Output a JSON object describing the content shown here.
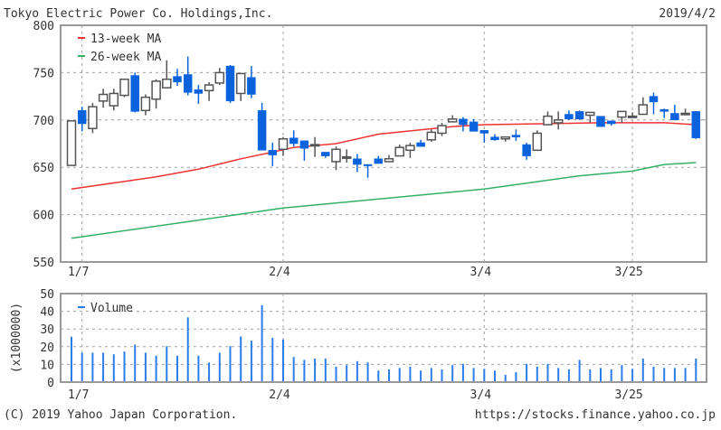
{
  "header": {
    "title": "Tokyo Electric Power Co. Holdings,Inc.",
    "date": "2019/4/2"
  },
  "footer": {
    "copyright": "(C) 2019 Yahoo Japan Corporation.",
    "url": "https://stocks.finance.yahoo.co.jp"
  },
  "colors": {
    "down": "#0a63dc",
    "up_outline": "#555555",
    "ma13": "#ee3333",
    "ma26": "#33b066",
    "volume": "#2b7de9"
  },
  "chart_data": [
    {
      "type": "candlestick",
      "title": "Tokyo Electric Power Co. Holdings,Inc.",
      "ylim": [
        550,
        800
      ],
      "yticks": [
        800,
        750,
        700,
        650,
        600,
        550
      ],
      "xticks": [
        {
          "index": 1,
          "label": "1/7"
        },
        {
          "index": 20,
          "label": "2/4"
        },
        {
          "index": 39,
          "label": "3/4"
        },
        {
          "index": 53,
          "label": "3/25"
        }
      ],
      "legend": [
        "13-week MA",
        "26-week MA"
      ],
      "legend_position": "top-left",
      "ohlc": [
        [
          652,
          699,
          652,
          699
        ],
        [
          710,
          714,
          688,
          696
        ],
        [
          691,
          718,
          686,
          714
        ],
        [
          720,
          733,
          713,
          727
        ],
        [
          715,
          733,
          710,
          728
        ],
        [
          726,
          743,
          724,
          743
        ],
        [
          747,
          750,
          708,
          709
        ],
        [
          710,
          727,
          705,
          724
        ],
        [
          722,
          743,
          712,
          741
        ],
        [
          734,
          763,
          734,
          743
        ],
        [
          746,
          754,
          736,
          740
        ],
        [
          748,
          767,
          726,
          729
        ],
        [
          732,
          737,
          717,
          728
        ],
        [
          731,
          740,
          720,
          737
        ],
        [
          739,
          755,
          737,
          750
        ],
        [
          757,
          758,
          718,
          720
        ],
        [
          728,
          749,
          720,
          749
        ],
        [
          745,
          757,
          723,
          727
        ],
        [
          710,
          718,
          668,
          668
        ],
        [
          668,
          676,
          651,
          663
        ],
        [
          669,
          682,
          662,
          680
        ],
        [
          681,
          689,
          672,
          675
        ],
        [
          678,
          678,
          657,
          670
        ],
        [
          674,
          682,
          661,
          674
        ],
        [
          666,
          666,
          660,
          662
        ],
        [
          656,
          672,
          647,
          669
        ],
        [
          661,
          669,
          655,
          661
        ],
        [
          659,
          664,
          645,
          653
        ],
        [
          653,
          653,
          639,
          652
        ],
        [
          659,
          662,
          654,
          654
        ],
        [
          656,
          663,
          656,
          659
        ],
        [
          662,
          674,
          662,
          671
        ],
        [
          668,
          676,
          660,
          673
        ],
        [
          676,
          679,
          672,
          672
        ],
        [
          679,
          690,
          677,
          687
        ],
        [
          686,
          697,
          683,
          694
        ],
        [
          698,
          705,
          698,
          701
        ],
        [
          701,
          703,
          688,
          695
        ],
        [
          698,
          701,
          688,
          688
        ],
        [
          689,
          689,
          676,
          686
        ],
        [
          682,
          685,
          678,
          679
        ],
        [
          680,
          682,
          677,
          682
        ],
        [
          684,
          690,
          678,
          682
        ],
        [
          674,
          676,
          658,
          662
        ],
        [
          668,
          689,
          668,
          686
        ],
        [
          695,
          709,
          695,
          704
        ],
        [
          697,
          709,
          690,
          700
        ],
        [
          706,
          710,
          700,
          701
        ],
        [
          709,
          710,
          700,
          701
        ],
        [
          705,
          708,
          697,
          708
        ],
        [
          704,
          704,
          693,
          693
        ],
        [
          699,
          699,
          694,
          696
        ],
        [
          703,
          709,
          697,
          709
        ],
        [
          704,
          708,
          703,
          704
        ],
        [
          706,
          724,
          706,
          716
        ],
        [
          725,
          729,
          706,
          719
        ],
        [
          711,
          712,
          702,
          709
        ],
        [
          707,
          716,
          700,
          700
        ],
        [
          707,
          712,
          706,
          707
        ],
        [
          709,
          709,
          680,
          681
        ]
      ],
      "ma13": [
        [
          0,
          627
        ],
        [
          8,
          640
        ],
        [
          12,
          648
        ],
        [
          16,
          659
        ],
        [
          19,
          666
        ],
        [
          21,
          671
        ],
        [
          25,
          675
        ],
        [
          29,
          685
        ],
        [
          36,
          693
        ],
        [
          39,
          695
        ],
        [
          50,
          697
        ],
        [
          56,
          697
        ],
        [
          59,
          695
        ]
      ],
      "ma26": [
        [
          0,
          575
        ],
        [
          20,
          607
        ],
        [
          39,
          627
        ],
        [
          48,
          641
        ],
        [
          53,
          646
        ],
        [
          56,
          653
        ],
        [
          59,
          655
        ]
      ]
    },
    {
      "type": "bar",
      "ylabel": "(x1000000)",
      "ylim": [
        0,
        50
      ],
      "yticks": [
        50,
        40,
        30,
        20,
        10,
        0
      ],
      "legend": [
        "Volume"
      ],
      "values": [
        25.6,
        16.6,
        16.6,
        16.6,
        15.7,
        17.3,
        21.2,
        16.6,
        14.9,
        20.3,
        14.9,
        36.6,
        14.9,
        11.1,
        16.6,
        20.3,
        25.8,
        23.4,
        43.4,
        25.0,
        24.1,
        14.2,
        12.6,
        13.3,
        13.3,
        8.7,
        9.6,
        11.8,
        11.1,
        6.5,
        7.2,
        8.0,
        8.7,
        6.5,
        8.0,
        7.2,
        9.6,
        10.3,
        8.0,
        7.5,
        6.5,
        4.1,
        5.6,
        10.3,
        8.7,
        10.3,
        8.0,
        7.2,
        12.6,
        7.2,
        8.0,
        7.2,
        9.6,
        7.5,
        13.3,
        8.7,
        8.0,
        8.0,
        8.0,
        13.3
      ]
    }
  ]
}
